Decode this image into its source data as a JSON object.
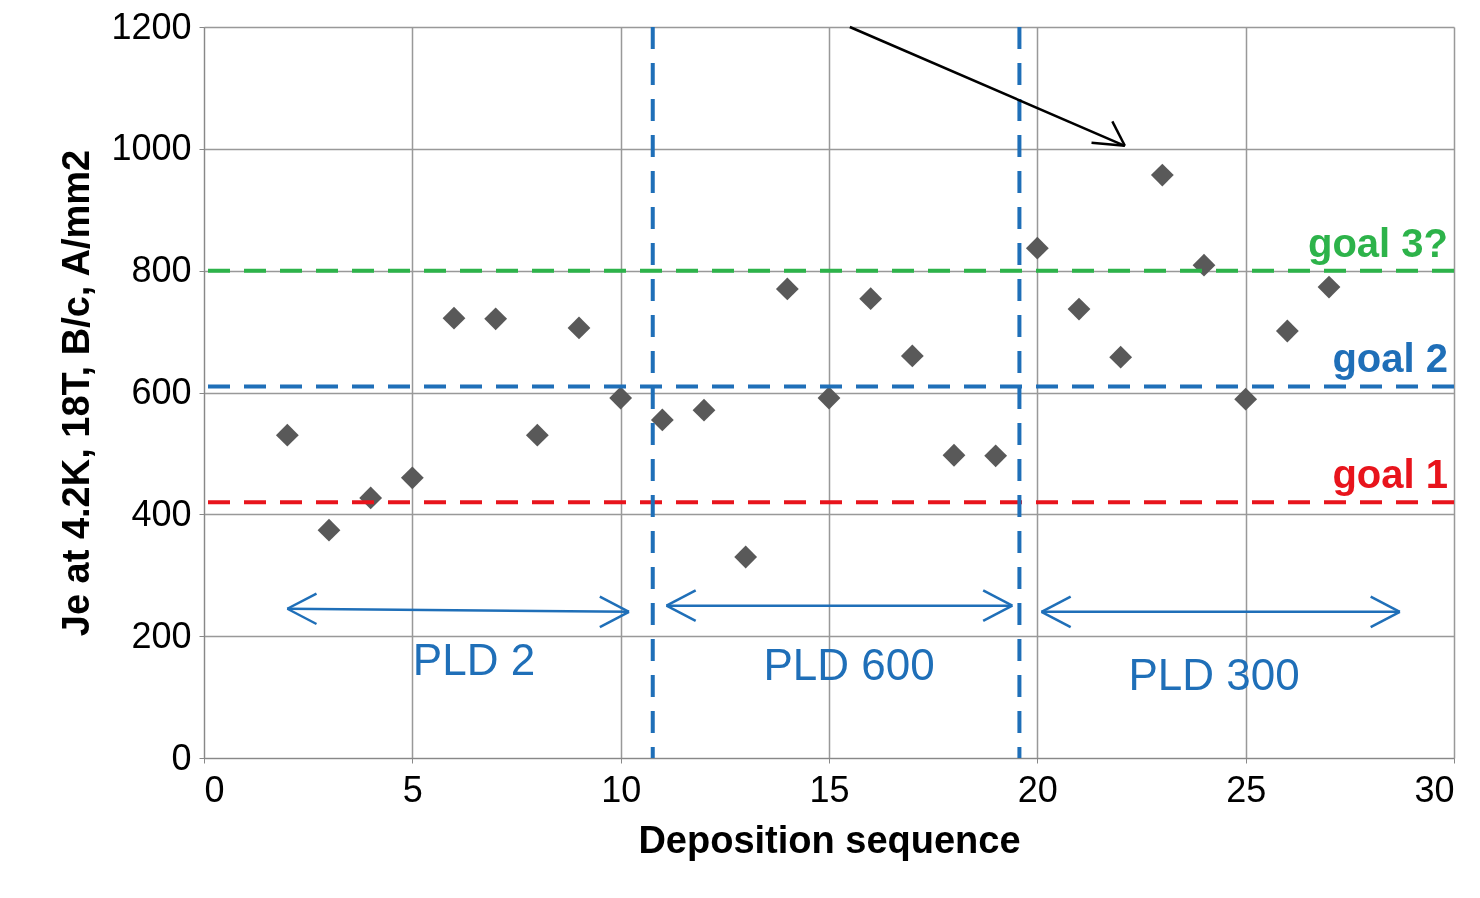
{
  "chart_data": {
    "type": "scatter",
    "xlabel": "Deposition sequence",
    "ylabel": "Je at 4.2K, 18T, B/c,  A/mm2",
    "x": [
      2,
      3,
      4,
      5,
      6,
      7,
      8,
      9,
      10,
      11,
      12,
      13,
      14,
      15,
      16,
      17,
      18,
      19,
      20,
      21,
      22,
      23,
      24,
      25,
      26,
      27
    ],
    "series": [
      {
        "color": "#595959",
        "values": [
          530,
          374,
          427,
          460,
          722,
          721,
          530,
          706,
          591,
          555,
          571,
          330,
          770,
          591,
          754,
          660,
          497,
          496,
          837,
          737,
          658,
          957,
          809,
          589,
          701,
          773
        ]
      }
    ],
    "xlim": [
      0,
      30
    ],
    "xticks": [
      0,
      5,
      10,
      15,
      20,
      25,
      30
    ],
    "ylim": [
      0,
      1200
    ],
    "yticks": [
      0,
      200,
      400,
      600,
      800,
      1000,
      1200
    ],
    "grid": true,
    "legend": false,
    "marker": "diamond",
    "ref_lines": [
      {
        "axis": "y",
        "value": 800,
        "label": "goal 3?",
        "color": "#2db34a",
        "line_style": "dashed"
      },
      {
        "axis": "y",
        "value": 610,
        "label": "goal 2",
        "color": "#1f6fb8",
        "line_style": "dashed"
      },
      {
        "axis": "y",
        "value": 420,
        "label": "goal 1",
        "color": "#e8141c",
        "line_style": "dashed"
      },
      {
        "axis": "x",
        "value": 10.77,
        "color": "#1f6fb8",
        "line_style": "dashed"
      },
      {
        "axis": "x",
        "value": 19.57,
        "color": "#1f6fb8",
        "line_style": "dashed"
      }
    ],
    "annotations": [
      "PLD 2",
      "PLD 600",
      "PLD 300"
    ]
  }
}
